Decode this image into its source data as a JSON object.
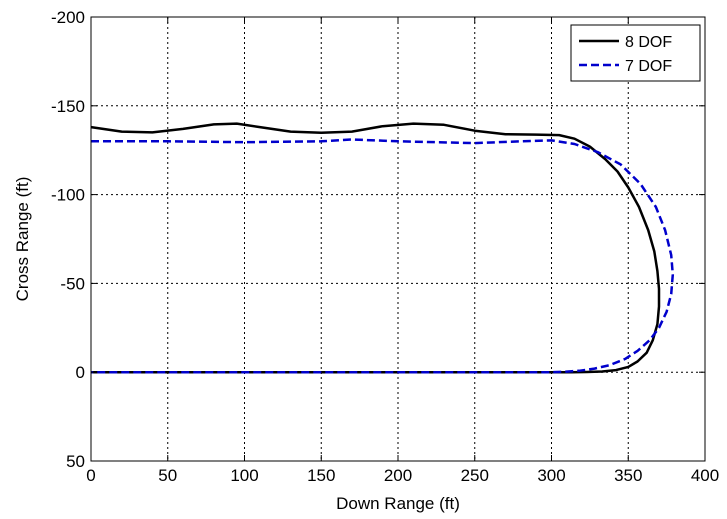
{
  "chart_data": {
    "type": "line",
    "title": "",
    "xlabel": "Down Range (ft)",
    "ylabel": "Cross Range (ft)",
    "xlim": [
      0,
      400
    ],
    "ylim": [
      50,
      -200
    ],
    "y_axis_reversed": true,
    "grid": true,
    "grid_style": "dotted",
    "legend_position": "top-right",
    "x_ticks": [
      0,
      50,
      100,
      150,
      200,
      250,
      300,
      350,
      400
    ],
    "y_ticks": [
      -200,
      -150,
      -100,
      -50,
      0,
      50
    ],
    "x_tick_labels": [
      "0",
      "50",
      "100",
      "150",
      "200",
      "250",
      "300",
      "350",
      "400"
    ],
    "y_tick_labels": [
      "-200",
      "-150",
      "-100",
      "-50",
      "0",
      "50"
    ],
    "series": [
      {
        "name": "8 DOF",
        "color": "#000000",
        "style": "solid",
        "x": [
          0,
          20,
          40,
          60,
          80,
          95,
          110,
          130,
          150,
          170,
          190,
          210,
          230,
          250,
          270,
          290,
          305,
          315,
          325,
          335,
          343,
          350,
          357,
          363,
          367,
          369,
          370,
          370,
          369,
          366,
          362,
          356,
          350,
          342,
          333,
          323,
          313,
          305,
          290,
          250,
          200,
          150,
          100,
          50,
          0
        ],
        "y": [
          -138,
          -135.5,
          -135,
          -137,
          -139.5,
          -140,
          -138,
          -135.5,
          -134.8,
          -135.5,
          -138.5,
          -140,
          -139.3,
          -136,
          -134,
          -133.8,
          -133.5,
          -131.5,
          -127,
          -120,
          -113,
          -104,
          -93,
          -80,
          -68,
          -57,
          -47,
          -37,
          -27,
          -18,
          -11,
          -6,
          -3,
          -1.2,
          -0.4,
          -0.1,
          0,
          0,
          0,
          0,
          0,
          0,
          0,
          0,
          0
        ],
        "ys_note": ""
      },
      {
        "name": "7 DOF",
        "color": "#0000cc",
        "style": "dashed",
        "x": [
          0,
          50,
          100,
          150,
          170,
          200,
          250,
          280,
          300,
          315,
          330,
          345,
          358,
          368,
          374,
          378,
          379,
          378,
          375,
          370,
          364,
          356,
          348,
          338,
          328,
          318,
          308,
          300,
          250,
          200,
          150,
          100,
          50,
          0
        ],
        "y": [
          -130,
          -130,
          -129.5,
          -130,
          -131,
          -130,
          -129,
          -130,
          -130.5,
          -128.5,
          -124,
          -117,
          -106,
          -93,
          -80,
          -66,
          -55,
          -44,
          -34,
          -25,
          -18,
          -12,
          -7.5,
          -4,
          -2,
          -0.8,
          -0.2,
          0,
          0,
          0,
          0,
          0,
          0,
          0
        ]
      }
    ]
  }
}
